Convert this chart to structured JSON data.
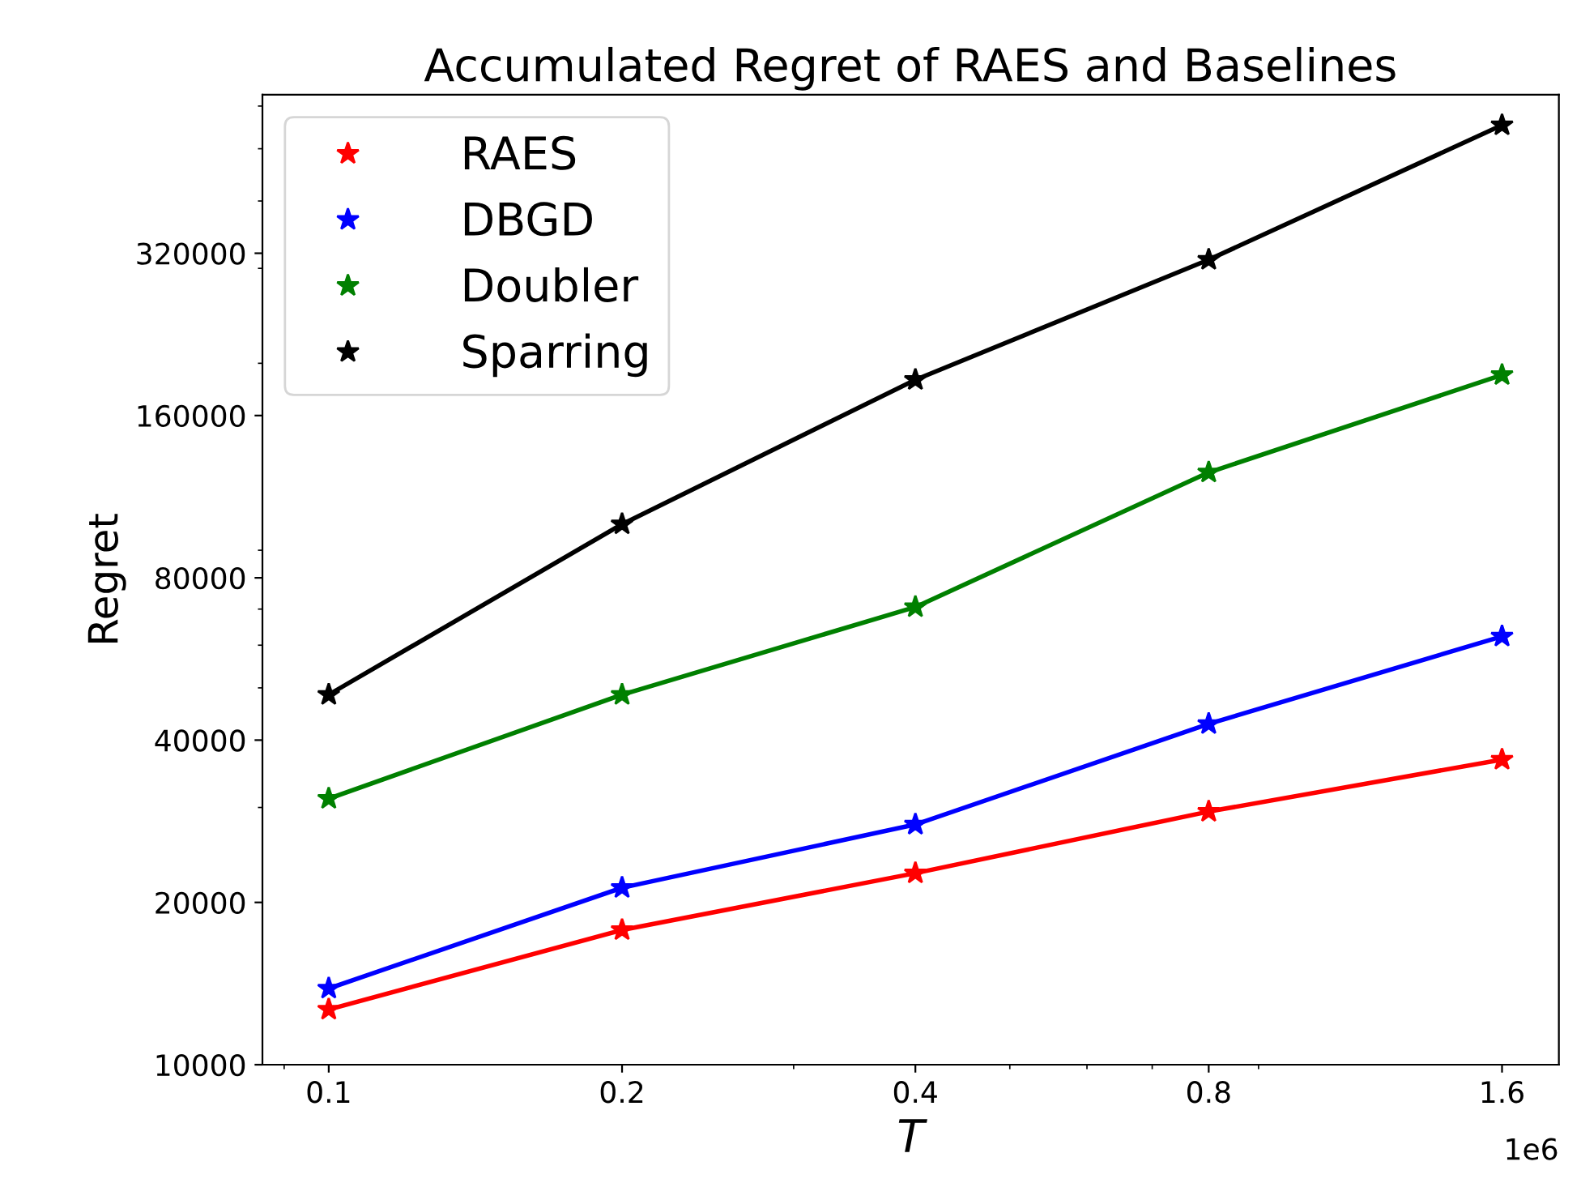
{
  "chart_data": {
    "type": "line",
    "title": "Accumulated Regret of RAES and Baselines",
    "xlabel": "T",
    "ylabel": "Regret",
    "annotations": [
      "1e6"
    ],
    "x": [
      0.1,
      0.2,
      0.4,
      0.8,
      1.6
    ],
    "series": [
      {
        "name": "RAES",
        "color": "#ff0000",
        "values": [
          12660,
          17780,
          22660,
          29480,
          36800
        ]
      },
      {
        "name": "DBGD",
        "color": "#0000ff",
        "values": [
          13850,
          21290,
          27900,
          42870,
          62300
        ]
      },
      {
        "name": "Doubler",
        "color": "#008000",
        "values": [
          31160,
          48570,
          70620,
          125500,
          190300
        ]
      },
      {
        "name": "Sparring",
        "color": "#000000",
        "values": [
          48570,
          100600,
          186400,
          311300,
          553000
        ]
      }
    ],
    "log": "xy",
    "xlim": [
      0.0855,
      1.83
    ],
    "ylim": [
      10000,
      630000
    ],
    "xticks": [
      0.1,
      0.2,
      0.4,
      0.8,
      1.6
    ],
    "yticks": [
      10000,
      20000,
      40000,
      80000,
      160000,
      320000
    ],
    "grid": false,
    "legend": "top left",
    "marker": "star",
    "line_style": "solid"
  }
}
